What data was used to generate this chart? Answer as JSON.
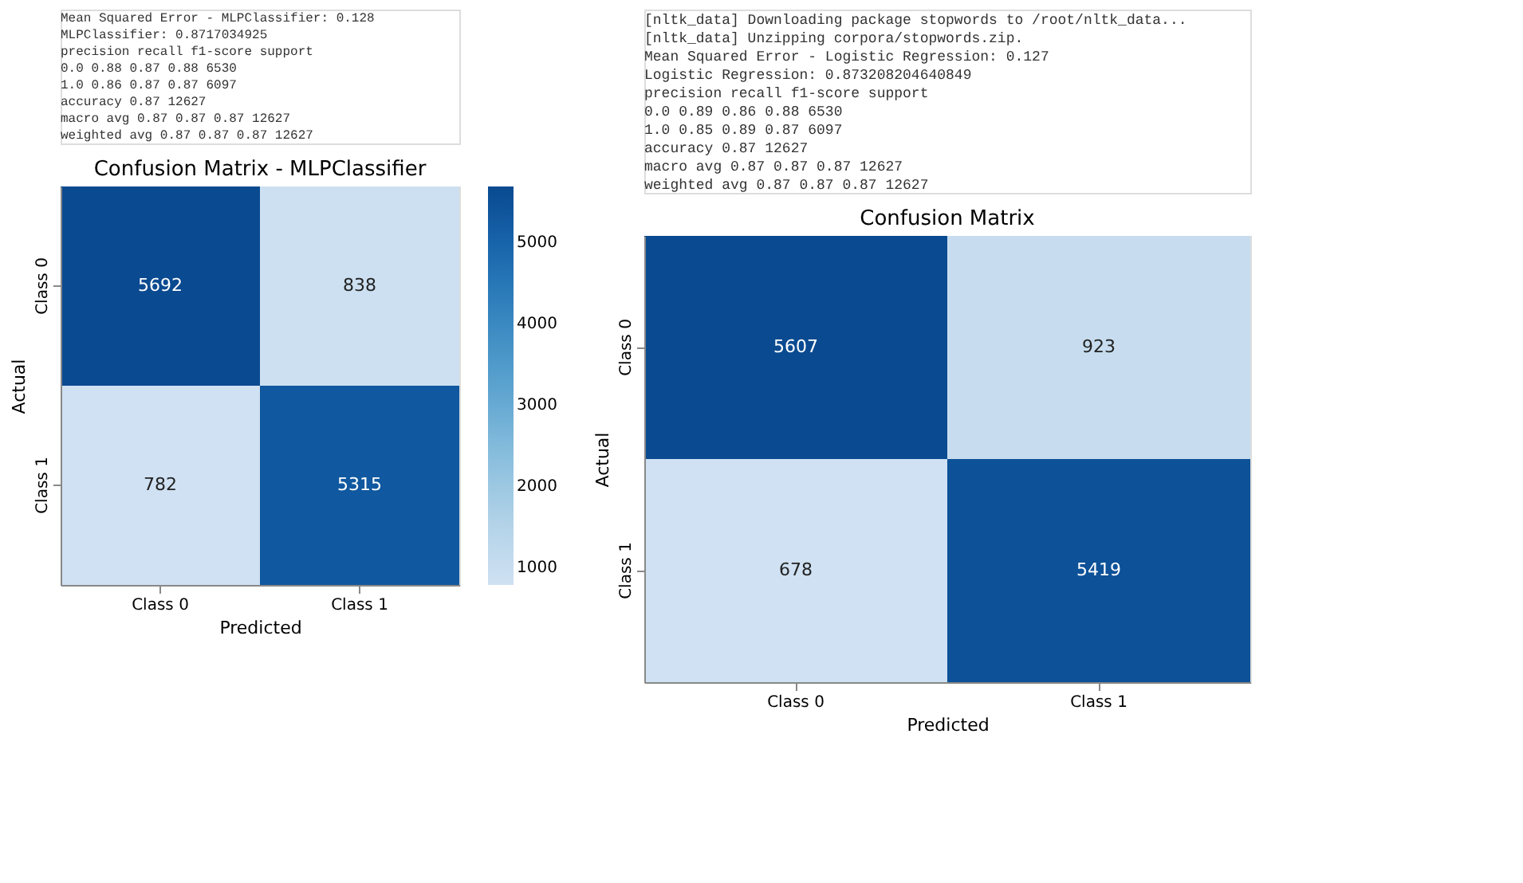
{
  "chart_data": [
    {
      "type": "heatmap",
      "title": "Confusion Matrix - MLPClassifier",
      "xlabel": "Predicted",
      "ylabel": "Actual",
      "categories": [
        "Class 0",
        "Class 1"
      ],
      "y_categories": [
        "Class 0",
        "Class 1"
      ],
      "cells": [
        [
          5692,
          838
        ],
        [
          782,
          5315
        ]
      ],
      "data_labels": true,
      "clim": [
        782,
        5692
      ],
      "cticks": [
        1000,
        2000,
        3000,
        4000,
        5000
      ],
      "annotations": [
        "Mean Squared Error - MLPClassifier: 0.128",
        "MLPClassifier: 0.8717034925",
        "precision recall f1-score support",
        "0.0 0.88 0.87 0.88 6530",
        "1.0 0.86 0.87 0.87 6097",
        "accuracy 0.87 12627",
        "macro avg 0.87 0.87 0.87 12627",
        "weighted avg 0.87 0.87 0.87 12627"
      ]
    },
    {
      "type": "heatmap",
      "title": "Confusion Matrix",
      "xlabel": "Predicted",
      "ylabel": "Actual",
      "categories": [
        "Class 0",
        "Class 1"
      ],
      "y_categories": [
        "Class 0",
        "Class 1"
      ],
      "cells": [
        [
          5607,
          923
        ],
        [
          678,
          5419
        ]
      ],
      "data_labels": true,
      "annotations": [
        "[nltk_data] Downloading package stopwords to /root/nltk_data...",
        "[nltk_data] Unzipping corpora/stopwords.zip.",
        "Mean Squared Error - Logistic Regression: 0.127",
        "Logistic Regression: 0.873208204640849",
        "precision recall f1-score support",
        "0.0 0.89 0.86 0.88 6530",
        "1.0 0.85 0.89 0.87 6097",
        "accuracy 0.87 12627",
        "macro avg 0.87 0.87 0.87 12627",
        "weighted avg 0.87 0.87 0.87 12627"
      ]
    }
  ]
}
